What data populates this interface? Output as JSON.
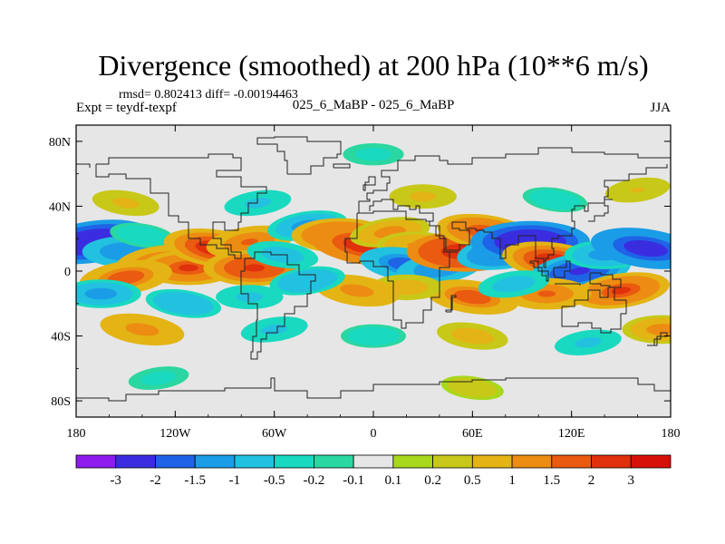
{
  "chart_data": {
    "type": "heatmap",
    "title": "Divergence (smoothed) at 200 hPa (10**6 m/s)",
    "subtitle_stats": "rmsd= 0.802413 diff= -0.00194463",
    "left_label": "Expt = teydf-texpf",
    "center_label": "025_6_MaBP - 025_6_MaBP",
    "right_label": "JJA",
    "variable": "Divergence (smoothed)",
    "level": "200 hPa",
    "units": "10**6 m/s",
    "x_axis": {
      "range": [
        -180,
        180
      ],
      "ticks": [
        {
          "value": -180,
          "label": "180"
        },
        {
          "value": -120,
          "label": "120W"
        },
        {
          "value": -60,
          "label": "60W"
        },
        {
          "value": 0,
          "label": "0"
        },
        {
          "value": 60,
          "label": "60E"
        },
        {
          "value": 120,
          "label": "120E"
        },
        {
          "value": 180,
          "label": "180"
        }
      ]
    },
    "y_axis": {
      "range": [
        -90,
        90
      ],
      "ticks": [
        {
          "value": 80,
          "label": "80N"
        },
        {
          "value": 40,
          "label": "40N"
        },
        {
          "value": 0,
          "label": "0"
        },
        {
          "value": -40,
          "label": "40S"
        },
        {
          "value": -80,
          "label": "80S"
        }
      ]
    },
    "colorbar": {
      "labels": [
        "-3",
        "-2",
        "-1.5",
        "-1",
        "-0.5",
        "-0.2",
        "-0.1",
        "0.1",
        "0.2",
        "0.5",
        "1",
        "1.5",
        "2",
        "3"
      ],
      "colors": [
        "#8f1bee",
        "#3a2de0",
        "#1f63e6",
        "#1b9ce6",
        "#22c1e0",
        "#19d9c0",
        "#2bd7a0",
        "#e6e6e6",
        "#a8d81c",
        "#c8c818",
        "#e3b414",
        "#ec8c12",
        "#ea5a10",
        "#e0300c",
        "#d8100a"
      ]
    },
    "background_color": "#e6e6e6",
    "features": [
      {
        "lon": -170,
        "lat": 18,
        "value": -3.0
      },
      {
        "lon": -150,
        "lat": 12,
        "value": -1.5
      },
      {
        "lon": -140,
        "lat": 22,
        "value": -0.5
      },
      {
        "lon": -130,
        "lat": 6,
        "value": 1.5
      },
      {
        "lon": -112,
        "lat": 2,
        "value": 2.0
      },
      {
        "lon": -95,
        "lat": 14,
        "value": 2.4
      },
      {
        "lon": -75,
        "lat": 18,
        "value": 1.5
      },
      {
        "lon": -72,
        "lat": 2,
        "value": 2.2
      },
      {
        "lon": -55,
        "lat": 10,
        "value": -0.8
      },
      {
        "lon": -40,
        "lat": 28,
        "value": -1.2
      },
      {
        "lon": -20,
        "lat": 22,
        "value": 2.0
      },
      {
        "lon": -5,
        "lat": 16,
        "value": 2.6
      },
      {
        "lon": 10,
        "lat": 24,
        "value": 1.2
      },
      {
        "lon": 25,
        "lat": 16,
        "value": 1.0
      },
      {
        "lon": 20,
        "lat": 4,
        "value": -1.8
      },
      {
        "lon": 40,
        "lat": 2,
        "value": -1.5
      },
      {
        "lon": 55,
        "lat": 12,
        "value": 2.8
      },
      {
        "lon": 68,
        "lat": 24,
        "value": 2.0
      },
      {
        "lon": 80,
        "lat": 12,
        "value": -2.0
      },
      {
        "lon": 95,
        "lat": 18,
        "value": -3.0
      },
      {
        "lon": 110,
        "lat": 6,
        "value": 2.4
      },
      {
        "lon": 125,
        "lat": 0,
        "value": -2.2
      },
      {
        "lon": 140,
        "lat": 10,
        "value": -1.2
      },
      {
        "lon": 165,
        "lat": 14,
        "value": -2.6
      },
      {
        "lon": 150,
        "lat": -12,
        "value": 2.0
      },
      {
        "lon": 105,
        "lat": -14,
        "value": 1.6
      },
      {
        "lon": 60,
        "lat": -16,
        "value": 1.8
      },
      {
        "lon": 85,
        "lat": -8,
        "value": -0.8
      },
      {
        "lon": 20,
        "lat": -10,
        "value": 0.8
      },
      {
        "lon": -10,
        "lat": -12,
        "value": 1.4
      },
      {
        "lon": -40,
        "lat": -6,
        "value": -1.0
      },
      {
        "lon": -75,
        "lat": -16,
        "value": -0.6
      },
      {
        "lon": -115,
        "lat": -20,
        "value": -1.0
      },
      {
        "lon": -150,
        "lat": -4,
        "value": 1.8
      },
      {
        "lon": -165,
        "lat": -14,
        "value": -1.2
      },
      {
        "lon": -140,
        "lat": -36,
        "value": 1.4
      },
      {
        "lon": -60,
        "lat": -36,
        "value": -0.6
      },
      {
        "lon": 0,
        "lat": -40,
        "value": -0.5
      },
      {
        "lon": 60,
        "lat": -40,
        "value": 0.8
      },
      {
        "lon": 130,
        "lat": -44,
        "value": -0.6
      },
      {
        "lon": 175,
        "lat": -36,
        "value": 1.2
      },
      {
        "lon": -150,
        "lat": 42,
        "value": 0.6
      },
      {
        "lon": -70,
        "lat": 42,
        "value": -0.6
      },
      {
        "lon": 30,
        "lat": 46,
        "value": 0.6
      },
      {
        "lon": 110,
        "lat": 44,
        "value": -0.5
      },
      {
        "lon": 160,
        "lat": 50,
        "value": 0.5
      },
      {
        "lon": 0,
        "lat": 72,
        "value": -0.3
      },
      {
        "lon": 60,
        "lat": -72,
        "value": 0.4
      },
      {
        "lon": -130,
        "lat": -66,
        "value": -0.3
      }
    ]
  }
}
